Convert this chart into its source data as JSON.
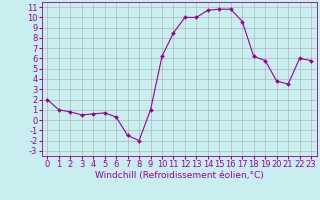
{
  "x": [
    0,
    1,
    2,
    3,
    4,
    5,
    6,
    7,
    8,
    9,
    10,
    11,
    12,
    13,
    14,
    15,
    16,
    17,
    18,
    19,
    20,
    21,
    22,
    23
  ],
  "y": [
    2,
    1,
    0.8,
    0.5,
    0.6,
    0.7,
    0.3,
    -1.5,
    -2,
    1,
    6.2,
    8.5,
    10,
    10,
    10.7,
    10.8,
    10.8,
    9.6,
    6.2,
    5.8,
    3.8,
    3.5,
    6.0,
    5.8
  ],
  "line_color": "#990099",
  "marker": "D",
  "marker_size": 2.0,
  "bg_color": "#c8eef0",
  "grid_color": "#aaaaaa",
  "xlabel": "Windchill (Refroidissement éolien,°C)",
  "xlim": [
    -0.5,
    23.5
  ],
  "ylim": [
    -3.5,
    11.5
  ],
  "xticks": [
    0,
    1,
    2,
    3,
    4,
    5,
    6,
    7,
    8,
    9,
    10,
    11,
    12,
    13,
    14,
    15,
    16,
    17,
    18,
    19,
    20,
    21,
    22,
    23
  ],
  "yticks": [
    -3,
    -2,
    -1,
    0,
    1,
    2,
    3,
    4,
    5,
    6,
    7,
    8,
    9,
    10,
    11
  ],
  "axis_label_fontsize": 6.5,
  "tick_fontsize": 6.0
}
